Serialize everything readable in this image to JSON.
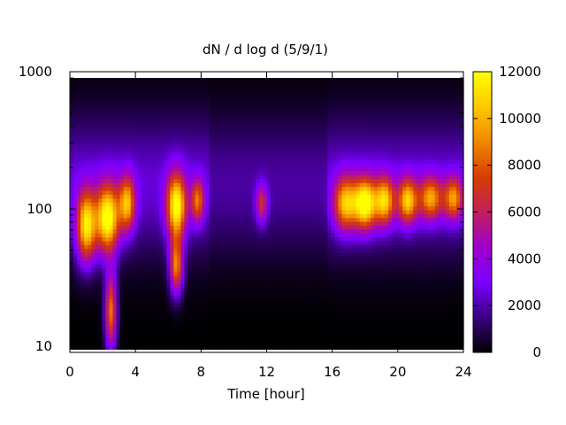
{
  "chart_data": {
    "type": "heatmap",
    "title": "dN / d log d (5/9/1)",
    "xlabel": "Time [hour]",
    "ylabel": "",
    "x_ticks": [
      "0",
      "4",
      "8",
      "12",
      "16",
      "20",
      "24"
    ],
    "x_tick_values": [
      0,
      4,
      8,
      12,
      16,
      20,
      24
    ],
    "xlim": [
      0,
      24
    ],
    "y_scale": "log",
    "y_ticks": [
      "10",
      "100",
      "1000"
    ],
    "y_tick_values": [
      10,
      100,
      1000
    ],
    "ylim": [
      9,
      1000
    ],
    "data_ylim": [
      9.5,
      900
    ],
    "colorbar": {
      "ticks": [
        "0",
        "2000",
        "4000",
        "6000",
        "8000",
        "10000",
        "12000"
      ],
      "tick_values": [
        0,
        2000,
        4000,
        6000,
        8000,
        10000,
        12000
      ],
      "range": [
        0,
        12000
      ],
      "palette": [
        "#000000",
        "#3a0082",
        "#7a00ff",
        "#a100cc",
        "#c0205a",
        "#d83c00",
        "#f08800",
        "#ffc800",
        "#ffff00"
      ],
      "placement": "right"
    },
    "events": [
      {
        "time": 1.0,
        "peak_diameter": 75,
        "value": 9800,
        "time_width": 0.6,
        "log_width": 0.26
      },
      {
        "time": 2.3,
        "peak_diameter": 85,
        "value": 10800,
        "time_width": 0.7,
        "log_width": 0.25
      },
      {
        "time": 2.5,
        "peak_diameter": 18,
        "value": 8500,
        "time_width": 0.35,
        "log_width": 0.28
      },
      {
        "time": 3.5,
        "peak_diameter": 110,
        "value": 8000,
        "time_width": 0.5,
        "log_width": 0.2
      },
      {
        "time": 6.5,
        "peak_diameter": 105,
        "value": 10300,
        "time_width": 0.6,
        "log_width": 0.24
      },
      {
        "time": 6.5,
        "peak_diameter": 38,
        "value": 8200,
        "time_width": 0.4,
        "log_width": 0.2
      },
      {
        "time": 7.8,
        "peak_diameter": 115,
        "value": 6500,
        "time_width": 0.4,
        "log_width": 0.16
      },
      {
        "time": 11.7,
        "peak_diameter": 110,
        "value": 6800,
        "time_width": 0.35,
        "log_width": 0.14
      },
      {
        "time": 16.8,
        "peak_diameter": 110,
        "value": 8200,
        "time_width": 0.7,
        "log_width": 0.2
      },
      {
        "time": 18.0,
        "peak_diameter": 110,
        "value": 10500,
        "time_width": 0.7,
        "log_width": 0.19
      },
      {
        "time": 19.2,
        "peak_diameter": 115,
        "value": 8500,
        "time_width": 0.6,
        "log_width": 0.18
      },
      {
        "time": 20.6,
        "peak_diameter": 115,
        "value": 8500,
        "time_width": 0.6,
        "log_width": 0.17
      },
      {
        "time": 22.0,
        "peak_diameter": 120,
        "value": 7500,
        "time_width": 0.7,
        "log_width": 0.16
      },
      {
        "time": 23.4,
        "peak_diameter": 120,
        "value": 7200,
        "time_width": 0.6,
        "log_width": 0.16
      }
    ],
    "background_mode": {
      "peak_diameter": 150,
      "value": 2500,
      "log_width": 0.5
    },
    "grid": false,
    "legend": "none"
  }
}
